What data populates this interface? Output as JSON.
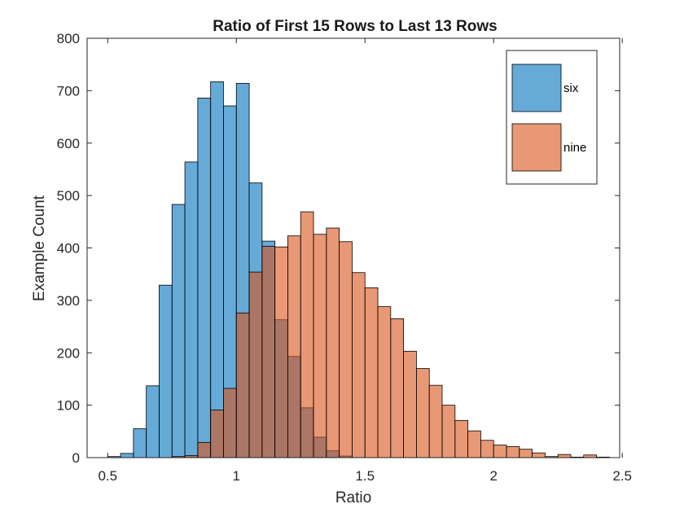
{
  "chart_data": {
    "type": "histogram",
    "title": "Ratio of First 15 Rows to Last 13 Rows",
    "xlabel": "Ratio",
    "ylabel": "Example Count",
    "xlim": [
      0.42,
      2.49
    ],
    "ylim": [
      0,
      800
    ],
    "bin_width": 0.05,
    "xticks": [
      0.5,
      1,
      1.5,
      2,
      2.5
    ],
    "xtick_labels": [
      "0.5",
      "1",
      "1.5",
      "2",
      "2.5"
    ],
    "yticks": [
      0,
      100,
      200,
      300,
      400,
      500,
      600,
      700,
      800
    ],
    "ytick_labels": [
      "0",
      "100",
      "200",
      "300",
      "400",
      "500",
      "600",
      "700",
      "800"
    ],
    "grid": false,
    "legend_position": "top-right",
    "series": [
      {
        "name": "six",
        "color": "#0072BD",
        "face_alpha": 0.6,
        "bins": [
          {
            "start": 0.5,
            "count": 2
          },
          {
            "start": 0.55,
            "count": 8
          },
          {
            "start": 0.6,
            "count": 55
          },
          {
            "start": 0.65,
            "count": 137
          },
          {
            "start": 0.7,
            "count": 329
          },
          {
            "start": 0.75,
            "count": 483
          },
          {
            "start": 0.8,
            "count": 564
          },
          {
            "start": 0.85,
            "count": 686
          },
          {
            "start": 0.9,
            "count": 717
          },
          {
            "start": 0.95,
            "count": 671
          },
          {
            "start": 1.0,
            "count": 714
          },
          {
            "start": 1.05,
            "count": 524
          },
          {
            "start": 1.1,
            "count": 413
          },
          {
            "start": 1.15,
            "count": 263
          },
          {
            "start": 1.2,
            "count": 193
          },
          {
            "start": 1.25,
            "count": 95
          },
          {
            "start": 1.3,
            "count": 39
          },
          {
            "start": 1.35,
            "count": 13
          },
          {
            "start": 1.4,
            "count": 3
          }
        ]
      },
      {
        "name": "nine",
        "color": "#D95319",
        "face_alpha": 0.6,
        "bins": [
          {
            "start": 0.75,
            "count": 2
          },
          {
            "start": 0.8,
            "count": 4
          },
          {
            "start": 0.85,
            "count": 29
          },
          {
            "start": 0.9,
            "count": 91
          },
          {
            "start": 0.95,
            "count": 132
          },
          {
            "start": 1.0,
            "count": 276
          },
          {
            "start": 1.05,
            "count": 354
          },
          {
            "start": 1.1,
            "count": 403
          },
          {
            "start": 1.15,
            "count": 402
          },
          {
            "start": 1.2,
            "count": 423
          },
          {
            "start": 1.25,
            "count": 469
          },
          {
            "start": 1.3,
            "count": 426
          },
          {
            "start": 1.35,
            "count": 438
          },
          {
            "start": 1.4,
            "count": 412
          },
          {
            "start": 1.45,
            "count": 353
          },
          {
            "start": 1.5,
            "count": 324
          },
          {
            "start": 1.55,
            "count": 288
          },
          {
            "start": 1.6,
            "count": 265
          },
          {
            "start": 1.65,
            "count": 203
          },
          {
            "start": 1.7,
            "count": 170
          },
          {
            "start": 1.75,
            "count": 138
          },
          {
            "start": 1.8,
            "count": 100
          },
          {
            "start": 1.85,
            "count": 71
          },
          {
            "start": 1.9,
            "count": 51
          },
          {
            "start": 1.95,
            "count": 33
          },
          {
            "start": 2.0,
            "count": 24
          },
          {
            "start": 2.05,
            "count": 21
          },
          {
            "start": 2.1,
            "count": 16
          },
          {
            "start": 2.15,
            "count": 9
          },
          {
            "start": 2.2,
            "count": 2
          },
          {
            "start": 2.25,
            "count": 6
          },
          {
            "start": 2.3,
            "count": 1
          },
          {
            "start": 2.35,
            "count": 5
          },
          {
            "start": 2.4,
            "count": 1
          }
        ]
      }
    ]
  }
}
